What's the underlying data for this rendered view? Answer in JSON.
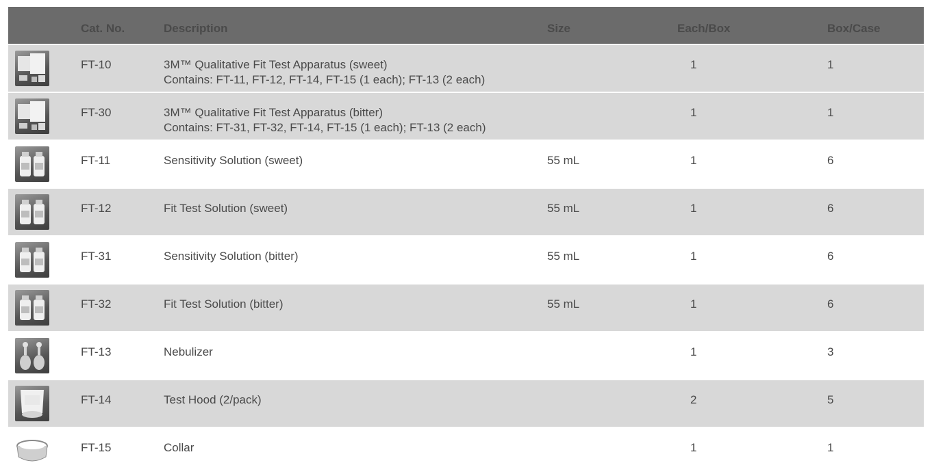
{
  "table": {
    "headers": {
      "image": "",
      "cat_no": "Cat. No.",
      "description": "Description",
      "size": "Size",
      "each_box": "Each/Box",
      "box_case": "Box/Case"
    },
    "rows": [
      {
        "image_icon": "fit-test-kit-icon",
        "cat_no": "FT-10",
        "description_line1": "3M™ Qualitative Fit Test Apparatus (sweet)",
        "description_line2": "Contains: FT-11, FT-12, FT-14, FT-15 (1 each); FT-13 (2 each)",
        "size": "",
        "each_box": "1",
        "box_case": "1"
      },
      {
        "image_icon": "fit-test-kit-icon",
        "cat_no": "FT-30",
        "description_line1": "3M™ Qualitative Fit Test Apparatus (bitter)",
        "description_line2": "Contains: FT-31, FT-32, FT-14, FT-15 (1 each); FT-13 (2 each)",
        "size": "",
        "each_box": "1",
        "box_case": "1"
      },
      {
        "image_icon": "solution-bottles-icon",
        "cat_no": "FT-11",
        "description_line1": "Sensitivity Solution (sweet)",
        "description_line2": "",
        "size": "55 mL",
        "each_box": "1",
        "box_case": "6"
      },
      {
        "image_icon": "solution-bottles-icon",
        "cat_no": "FT-12",
        "description_line1": "Fit Test Solution (sweet)",
        "description_line2": "",
        "size": "55 mL",
        "each_box": "1",
        "box_case": "6"
      },
      {
        "image_icon": "solution-bottles-icon",
        "cat_no": "FT-31",
        "description_line1": "Sensitivity Solution (bitter)",
        "description_line2": "",
        "size": "55 mL",
        "each_box": "1",
        "box_case": "6"
      },
      {
        "image_icon": "solution-bottles-icon",
        "cat_no": "FT-32",
        "description_line1": "Fit Test Solution (bitter)",
        "description_line2": "",
        "size": "55 mL",
        "each_box": "1",
        "box_case": "6"
      },
      {
        "image_icon": "nebulizer-icon",
        "cat_no": "FT-13",
        "description_line1": "Nebulizer",
        "description_line2": "",
        "size": "",
        "each_box": "1",
        "box_case": "3"
      },
      {
        "image_icon": "test-hood-icon",
        "cat_no": "FT-14",
        "description_line1": "Test Hood (2/pack)",
        "description_line2": "",
        "size": "",
        "each_box": "2",
        "box_case": "5"
      },
      {
        "image_icon": "collar-icon",
        "cat_no": "FT-15",
        "description_line1": "Collar",
        "description_line2": "",
        "size": "",
        "each_box": "1",
        "box_case": "1"
      }
    ]
  },
  "colors": {
    "header_bg": "#6b6b6b",
    "alt_row_bg": "#d8d8d8",
    "text": "#4a4a4a"
  }
}
